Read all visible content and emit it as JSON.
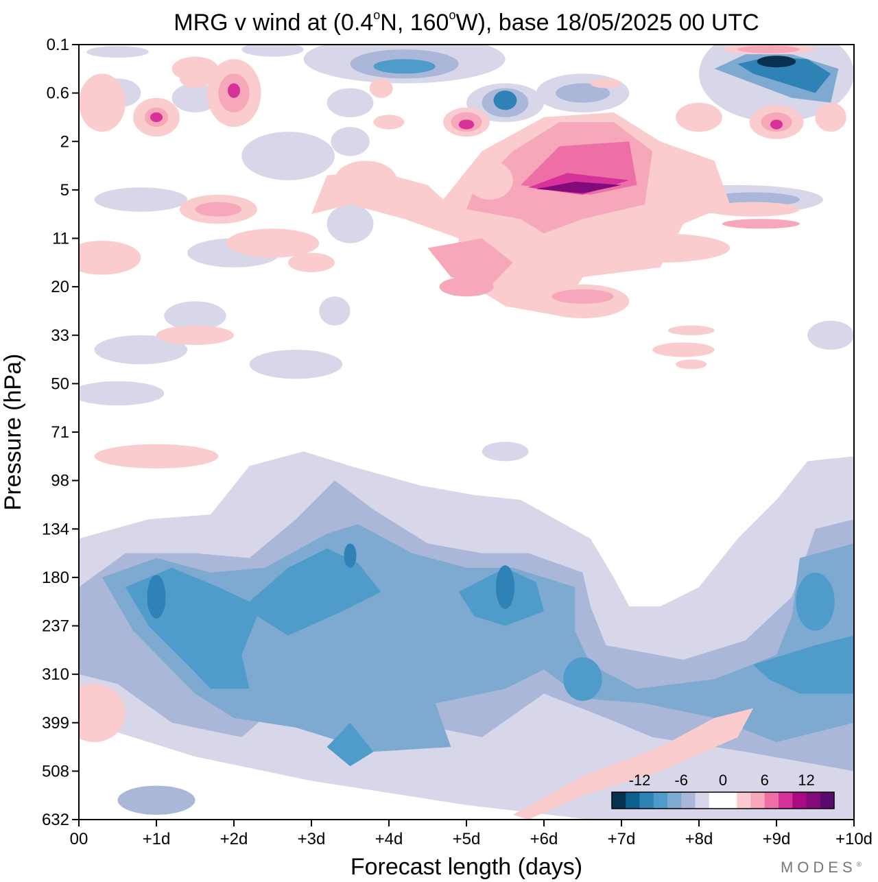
{
  "chart_data": {
    "type": "heatmap",
    "title": {
      "prefix": "MRG v wind at (0.4",
      "deg1": "o",
      "lat_suffix": "N, 160",
      "deg2": "o",
      "lon_suffix": "W),  base 18/05/2025  00 UTC"
    },
    "xlabel": "Forecast length (days)",
    "ylabel": "Pressure (hPa)",
    "x_ticks": [
      "00",
      "+1d",
      "+2d",
      "+3d",
      "+4d",
      "+5d",
      "+6d",
      "+7d",
      "+8d",
      "+9d",
      "+10d"
    ],
    "x_range_days": [
      0,
      10
    ],
    "y_ticks": [
      "0.1",
      "0.6",
      "2",
      "5",
      "11",
      "20",
      "33",
      "50",
      "71",
      "98",
      "134",
      "180",
      "237",
      "310",
      "399",
      "508",
      "632"
    ],
    "y_order": "top-to-bottom",
    "colorbar": {
      "labels": [
        "-12",
        "-6",
        "0",
        "6",
        "12"
      ],
      "levels": [
        -14,
        -12,
        -10,
        -8,
        -6,
        -4,
        -2,
        0,
        2,
        4,
        6,
        8,
        10,
        12,
        14
      ],
      "colors": [
        "#08314f",
        "#0c5f8e",
        "#2f82b6",
        "#4f9ccb",
        "#7ea9d1",
        "#aab7d9",
        "#d7d7e9",
        "#ffffff",
        "#ffffff",
        "#fbcccd",
        "#f6a7ba",
        "#ee6fa6",
        "#d7319a",
        "#ab0b82",
        "#830a7a",
        "#5b0a6e"
      ],
      "position": "bottom-right"
    },
    "features": [
      {
        "name": "lower-strat negative band",
        "x_days": [
          0,
          10
        ],
        "pressure_hPa": [
          98,
          632
        ],
        "min_value": -10
      },
      {
        "name": "negative core",
        "x_days": 1,
        "pressure_hPa": 200,
        "value": -10
      },
      {
        "name": "negative core",
        "x_days": 3.5,
        "pressure_hPa": 160,
        "value": -10
      },
      {
        "name": "negative core",
        "x_days": 5.5,
        "pressure_hPa": 190,
        "value": -10
      },
      {
        "name": "negative core",
        "x_days": 9.5,
        "pressure_hPa": 310,
        "value": -8
      },
      {
        "name": "upper positive maximum",
        "x_days": 6,
        "pressure_hPa": 5,
        "value": 14
      },
      {
        "name": "upper negative maximum",
        "x_days": 9,
        "pressure_hPa": 0.2,
        "value": -14
      },
      {
        "name": "upper negative",
        "x_days": 4,
        "pressure_hPa": 0.2,
        "value": -8
      },
      {
        "name": "upper negative",
        "x_days": 5.5,
        "pressure_hPa": 0.8,
        "value": -10
      }
    ]
  },
  "watermark": {
    "text": "MODES",
    "mark": "®"
  }
}
